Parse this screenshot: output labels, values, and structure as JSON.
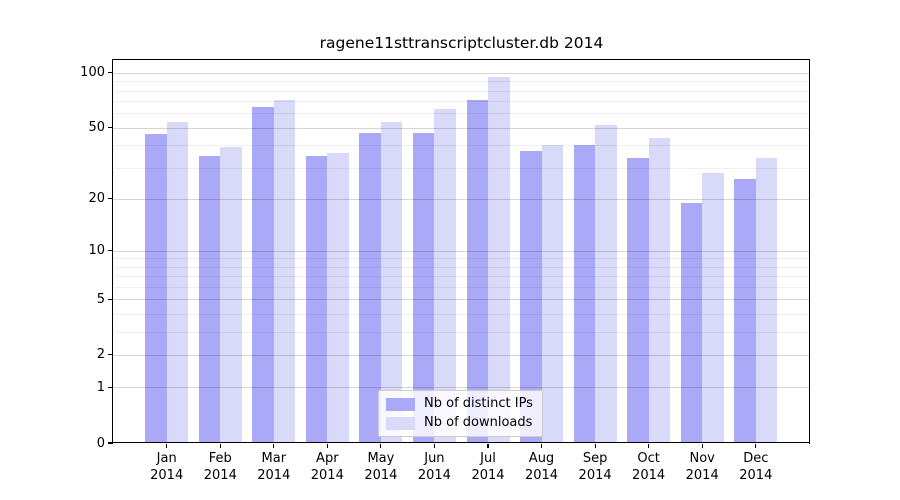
{
  "title": "ragene11sttranscriptcluster.db 2014",
  "chart_data": {
    "type": "bar",
    "categories": [
      "Jan",
      "Feb",
      "Mar",
      "Apr",
      "May",
      "Jun",
      "Jul",
      "Aug",
      "Sep",
      "Oct",
      "Nov",
      "Dec"
    ],
    "year": "2014",
    "series": [
      {
        "name": "Nb of distinct IPs",
        "color": "#a9a9f7",
        "values": [
          46,
          35,
          65,
          35,
          47,
          47,
          71,
          37,
          40,
          34,
          19,
          26
        ]
      },
      {
        "name": "Nb of downloads",
        "color": "#d9d9f9",
        "values": [
          54,
          39,
          71,
          36,
          54,
          63,
          95,
          40,
          52,
          44,
          28,
          34
        ]
      }
    ],
    "title": "ragene11sttranscriptcluster.db 2014",
    "xlabel": "",
    "ylabel": "",
    "yscale": "log1p",
    "ylim": [
      0,
      117
    ],
    "yticks": [
      0,
      1,
      2,
      5,
      10,
      20,
      50,
      100
    ],
    "yticks_minor": [
      3,
      4,
      6,
      7,
      8,
      9,
      30,
      40,
      60,
      70,
      80,
      90
    ],
    "grid": true,
    "legend_position": "lower-center"
  },
  "colors": {
    "background": "#ffffff",
    "bar_ips": "#a9a9f7",
    "bar_downloads": "#d9d9f9",
    "grid_major": "#d6d6d6",
    "grid_minor": "#ededed",
    "spine": "#000000",
    "text": "#000000",
    "legend_border": "#cccccc"
  }
}
